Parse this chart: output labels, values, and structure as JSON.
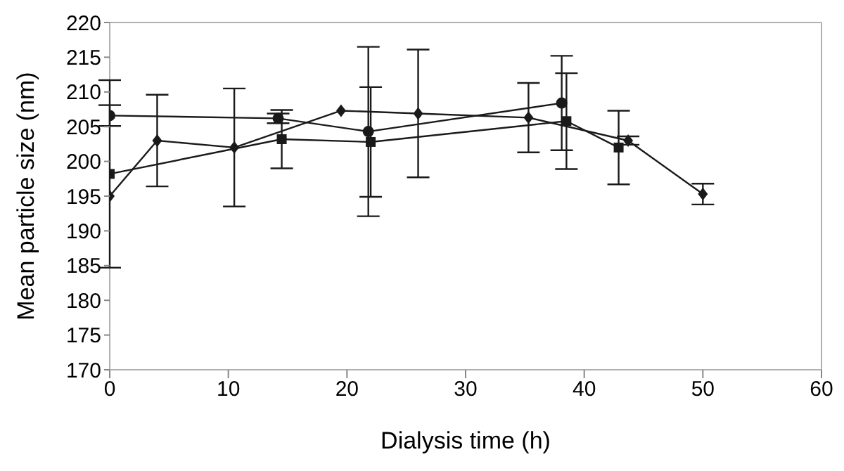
{
  "chart_data": {
    "type": "line",
    "xlabel": "Dialysis time (h)",
    "ylabel": "Mean particle size (nm)",
    "xlim": [
      0,
      60
    ],
    "xticks": [
      0,
      10,
      20,
      30,
      40,
      50,
      60
    ],
    "ylim": [
      170,
      220
    ],
    "yticks": [
      170,
      175,
      180,
      185,
      190,
      195,
      200,
      205,
      210,
      215,
      220
    ],
    "grid": false,
    "legend": false,
    "series": [
      {
        "color": "#1a1a1a",
        "marker": "diamond",
        "x": [
          0,
          4,
          10.5,
          19.5,
          26,
          35.3,
          43.7,
          50
        ],
        "values": [
          195,
          203,
          202,
          207.3,
          206.9,
          206.3,
          203,
          195.3
        ],
        "errors": [
          null,
          6.6,
          8.5,
          null,
          9.2,
          5,
          0.6,
          1.5
        ]
      },
      {
        "color": "#1a1a1a",
        "marker": "circle",
        "x": [
          0,
          14.2,
          21.8,
          38.1
        ],
        "values": [
          206.6,
          206.2,
          204.3,
          208.4
        ],
        "errors": [
          1.5,
          0.7,
          12.2,
          6.8
        ]
      },
      {
        "color": "#1a1a1a",
        "marker": "square",
        "x": [
          0,
          14.5,
          22,
          38.5,
          42.9
        ],
        "values": [
          198.2,
          203.2,
          202.8,
          205.8,
          202
        ],
        "errors": [
          13.5,
          4.2,
          7.9,
          6.9,
          5.3
        ]
      }
    ]
  }
}
